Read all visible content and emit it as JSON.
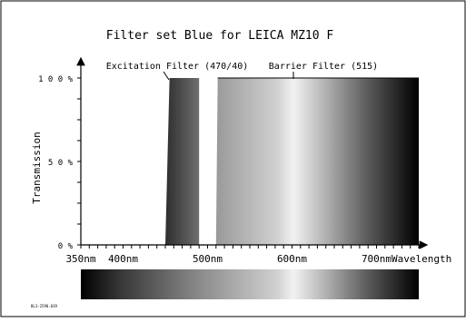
{
  "chart_data": {
    "type": "area",
    "title": "Filter set Blue for LEICA MZ10 F",
    "xlabel": "Wavelength",
    "ylabel": "Transmission",
    "xlim": [
      350,
      750
    ],
    "ylim": [
      0,
      100
    ],
    "x_ticks": [
      {
        "value": 350,
        "label": "350nm"
      },
      {
        "value": 400,
        "label": "400nm"
      },
      {
        "value": 500,
        "label": "500nm"
      },
      {
        "value": 600,
        "label": "600nm"
      },
      {
        "value": 700,
        "label": "700nm"
      }
    ],
    "y_ticks": [
      {
        "value": 0,
        "label": "0 %"
      },
      {
        "value": 50,
        "label": "5 0 %"
      },
      {
        "value": 100,
        "label": "1 0 0 %"
      }
    ],
    "series": [
      {
        "name": "Excitation Filter (470/40)",
        "x": [
          450,
          455,
          490,
          490
        ],
        "y": [
          0,
          100,
          100,
          0
        ]
      },
      {
        "name": "Barrier Filter (515)",
        "x": [
          510,
          512,
          750,
          750
        ],
        "y": [
          0,
          100,
          100,
          0
        ]
      }
    ],
    "spectrum_bar": true,
    "grid": false,
    "footer_code": "BL3-2590.039"
  },
  "colors": {
    "excitation_fill_left": "#2e2e2e",
    "excitation_fill_right": "#6e6e6e",
    "spectrum_dark": "#000000",
    "spectrum_light": "#f2f2f2"
  }
}
